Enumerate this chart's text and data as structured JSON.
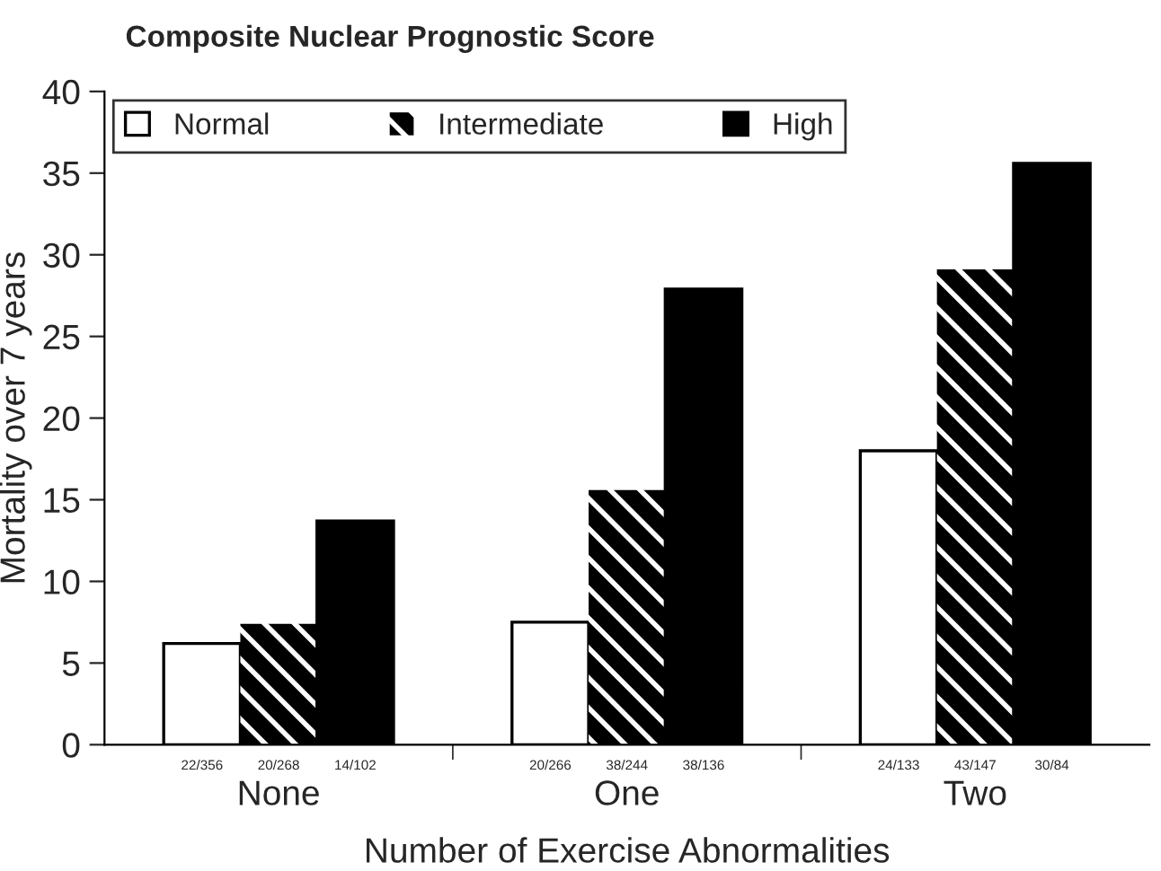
{
  "chart_data": {
    "type": "bar",
    "title": "Composite Nuclear Prognostic Score",
    "xlabel": "Number of Exercise Abnormalities",
    "ylabel": "Mortality over 7 years",
    "categories": [
      "None",
      "One",
      "Two"
    ],
    "series": [
      {
        "name": "Normal",
        "color": "#ffffff",
        "values": [
          6.2,
          7.5,
          18.0
        ],
        "value_labels": [
          "22/356",
          "20/266",
          "24/133"
        ]
      },
      {
        "name": "Intermediate",
        "color": "#000000",
        "values": [
          7.4,
          15.6,
          29.1
        ],
        "value_labels": [
          "20/268",
          "38/244",
          "43/147"
        ]
      },
      {
        "name": "High",
        "color": "#000000",
        "values": [
          13.7,
          27.9,
          35.6
        ],
        "value_labels": [
          "14/102",
          "38/136",
          "30/84"
        ]
      }
    ],
    "ylim": [
      0,
      40
    ],
    "yticks": [
      0,
      5,
      10,
      15,
      20,
      25,
      30,
      35,
      40
    ],
    "grid": false,
    "legend": "top left"
  }
}
